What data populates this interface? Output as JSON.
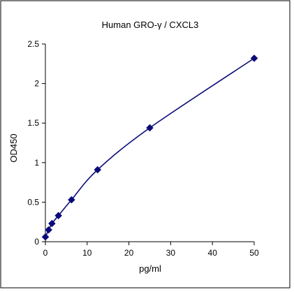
{
  "chart_data": {
    "type": "line",
    "title": "Human GRO-γ / CXCL3",
    "xlabel": "pg/ml",
    "ylabel": "OD450",
    "xlim": [
      0,
      50
    ],
    "ylim": [
      0,
      2.5
    ],
    "x_ticks": [
      0,
      10,
      20,
      30,
      40,
      50
    ],
    "x_tick_labels": [
      "0",
      "10",
      "20",
      "30",
      "40",
      "50"
    ],
    "y_ticks": [
      0,
      0.5,
      1,
      1.5,
      2,
      2.5
    ],
    "y_tick_labels": [
      "0",
      "0.5",
      "1",
      "1.5",
      "2",
      "2.5"
    ],
    "grid": false,
    "legend": "none",
    "series": [
      {
        "x": [
          0,
          0.78,
          1.56,
          3.12,
          6.25,
          12.5,
          25,
          50
        ],
        "y": [
          0.06,
          0.15,
          0.23,
          0.33,
          0.53,
          0.91,
          1.44,
          2.32
        ],
        "marker": "diamond",
        "smooth": true,
        "color": "#0a0a78"
      }
    ]
  }
}
